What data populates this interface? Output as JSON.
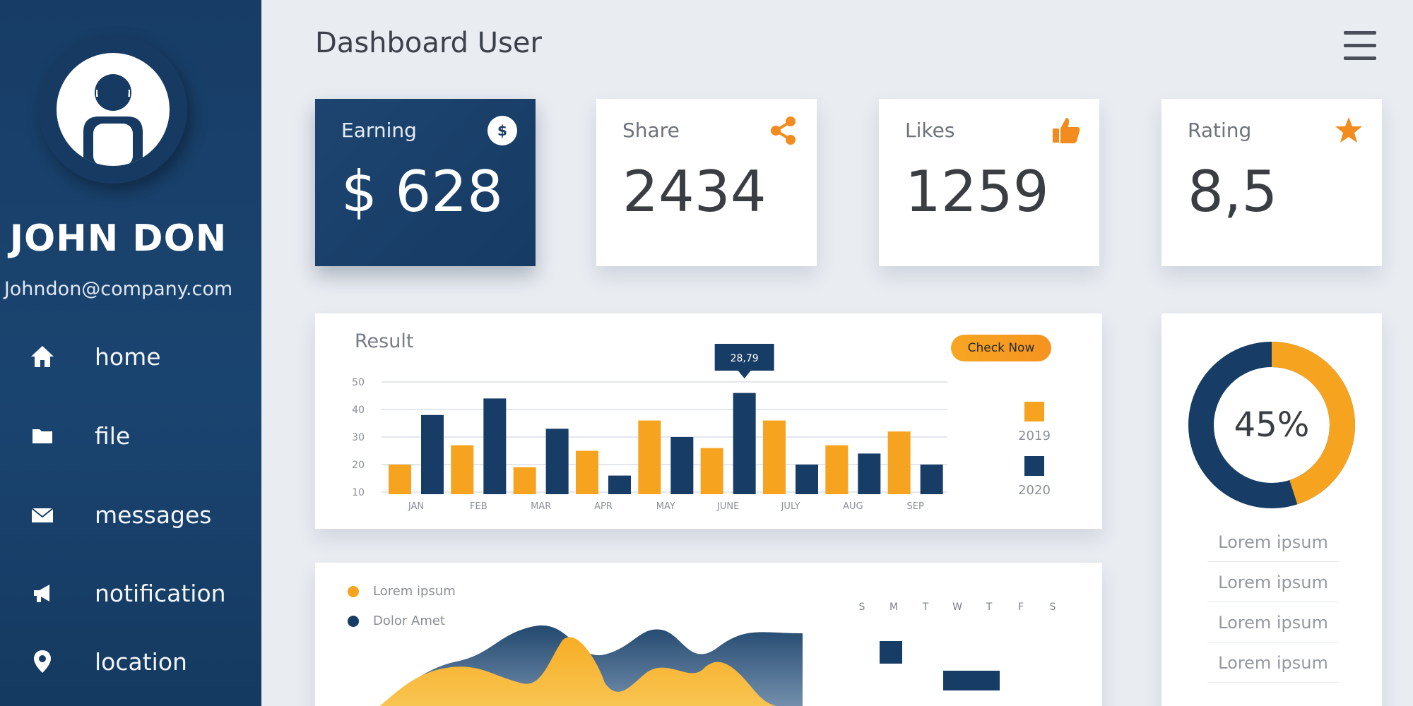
{
  "user": {
    "name": "JOHN DON",
    "email": "Johndon@company.com"
  },
  "nav": [
    {
      "label": "home",
      "icon": "home-icon"
    },
    {
      "label": "file",
      "icon": "folder-icon"
    },
    {
      "label": "messages",
      "icon": "envelope-icon"
    },
    {
      "label": "notification",
      "icon": "megaphone-icon"
    },
    {
      "label": "location",
      "icon": "location-pin-icon"
    }
  ],
  "header": {
    "title": "Dashboard User",
    "menu_icon": "hamburger-menu-icon"
  },
  "cards": [
    {
      "label": "Earning",
      "value": "$ 628",
      "icon": "dollar-icon",
      "style": "dark"
    },
    {
      "label": "Share",
      "value": "2434",
      "icon": "share-icon",
      "style": "light"
    },
    {
      "label": "Likes",
      "value": "1259",
      "icon": "thumbs-up-icon",
      "style": "light"
    },
    {
      "label": "Rating",
      "value": "8,5",
      "icon": "star-icon",
      "style": "light"
    }
  ],
  "colors": {
    "navy": "#173d66",
    "orange": "#f6a31f",
    "background": "#e9ecf1"
  },
  "result": {
    "title": "Result",
    "button_label": "Check Now"
  },
  "chart_data": {
    "type": "bar",
    "categories": [
      "JAN",
      "FEB",
      "MAR",
      "APR",
      "MAY",
      "JUNE",
      "JULY",
      "AUG",
      "SEP"
    ],
    "y_ticks": [
      10,
      20,
      30,
      40,
      50
    ],
    "ylim": [
      10,
      50
    ],
    "grid": true,
    "legend_position": "right",
    "tooltip": {
      "category": "JUNE",
      "label": "28,79"
    },
    "series": [
      {
        "name": "2019",
        "color": "#f6a31f",
        "values": [
          20,
          27,
          19,
          25,
          36,
          26,
          36,
          27,
          32
        ]
      },
      {
        "name": "2020",
        "color": "#173d66",
        "values": [
          38,
          44,
          33,
          16,
          30,
          46,
          20,
          24,
          20
        ]
      }
    ]
  },
  "bottom": {
    "legend": [
      {
        "label": "Lorem ipsum",
        "color": "#f6a31f"
      },
      {
        "label": "Dolor Amet",
        "color": "#173d66"
      }
    ],
    "calendar_days": [
      "S",
      "M",
      "T",
      "W",
      "T",
      "F",
      "S"
    ]
  },
  "donut": {
    "percent": 45,
    "label": "45%",
    "items": [
      "Lorem ipsum",
      "Lorem ipsum",
      "Lorem ipsum",
      "Lorem ipsum"
    ]
  }
}
